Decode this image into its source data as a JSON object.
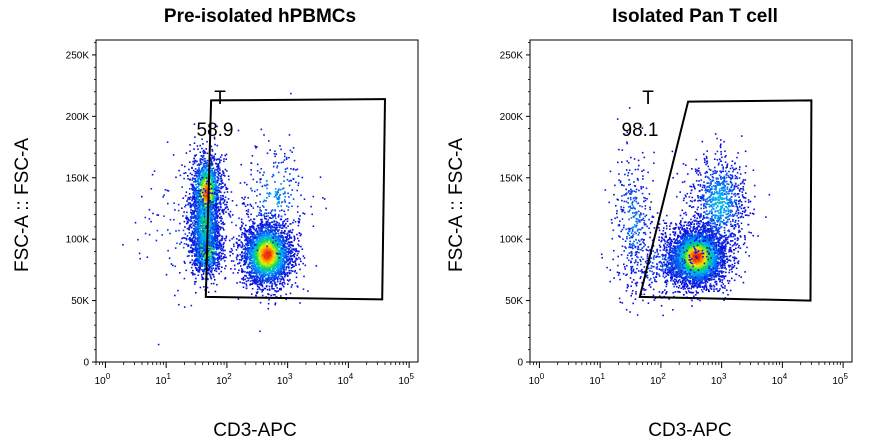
{
  "chart_data": [
    {
      "type": "scatter",
      "title": "Pre-isolated hPBMCs",
      "xlabel": "CD3-APC",
      "ylabel": "FSC-A :: FSC-A",
      "x_scale": "log",
      "xlim": [
        0.7,
        140000
      ],
      "ylim": [
        0,
        262144
      ],
      "x_ticks": [
        1,
        10,
        100,
        1000,
        10000,
        100000
      ],
      "y_ticks": [
        0,
        50000,
        100000,
        150000,
        200000,
        250000
      ],
      "y_tick_labels": [
        "0",
        "50K",
        "100K",
        "150K",
        "200K",
        "250K"
      ],
      "gate": {
        "name": "T",
        "percent": "58.9",
        "vertices": [
          [
            55,
            213000
          ],
          [
            40000,
            214000
          ],
          [
            36000,
            51000
          ],
          [
            45,
            53000
          ]
        ]
      },
      "populations": [
        {
          "x": 45,
          "y": 138000,
          "sx": 0.13,
          "sy": 16000,
          "n": 1500,
          "peak": 0.95
        },
        {
          "x": 45,
          "y": 92000,
          "sx": 0.13,
          "sy": 11000,
          "n": 900,
          "peak": 0.7
        },
        {
          "x": 42,
          "y": 112000,
          "sx": 0.14,
          "sy": 15000,
          "n": 700,
          "peak": 0.5
        },
        {
          "x": 450,
          "y": 88000,
          "sx": 0.21,
          "sy": 13000,
          "n": 2600,
          "peak": 1.0
        },
        {
          "x": 600,
          "y": 135000,
          "sx": 0.3,
          "sy": 22000,
          "n": 260,
          "peak": 0.25
        },
        {
          "x": 30,
          "y": 110000,
          "sx": 0.55,
          "sy": 28000,
          "n": 160,
          "peak": 0.15
        }
      ]
    },
    {
      "type": "scatter",
      "title": "Isolated Pan T cell",
      "xlabel": "CD3-APC",
      "ylabel": "FSC-A :: FSC-A",
      "x_scale": "log",
      "xlim": [
        0.7,
        140000
      ],
      "ylim": [
        0,
        262144
      ],
      "x_ticks": [
        1,
        10,
        100,
        1000,
        10000,
        100000
      ],
      "y_ticks": [
        0,
        50000,
        100000,
        150000,
        200000,
        250000
      ],
      "y_tick_labels": [
        "0",
        "50K",
        "100K",
        "150K",
        "200K",
        "250K"
      ],
      "gate": {
        "name": "T",
        "percent": "98.1",
        "vertices": [
          [
            280,
            212000
          ],
          [
            30000,
            213000
          ],
          [
            29000,
            50000
          ],
          [
            45,
            53000
          ]
        ]
      },
      "populations": [
        {
          "x": 380,
          "y": 86000,
          "sx": 0.24,
          "sy": 12000,
          "n": 3400,
          "peak": 1.0
        },
        {
          "x": 900,
          "y": 130000,
          "sx": 0.23,
          "sy": 20000,
          "n": 900,
          "peak": 0.35
        },
        {
          "x": 35,
          "y": 115000,
          "sx": 0.17,
          "sy": 28000,
          "n": 380,
          "peak": 0.2
        },
        {
          "x": 120,
          "y": 80000,
          "sx": 0.35,
          "sy": 15000,
          "n": 300,
          "peak": 0.15
        }
      ]
    }
  ]
}
